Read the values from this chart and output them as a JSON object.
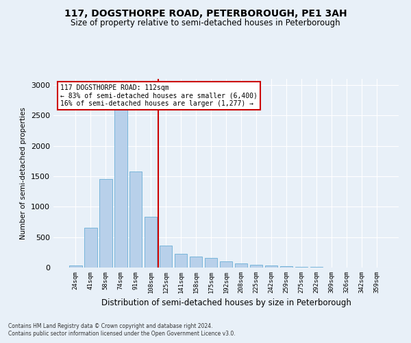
{
  "title": "117, DOGSTHORPE ROAD, PETERBOROUGH, PE1 3AH",
  "subtitle": "Size of property relative to semi-detached houses in Peterborough",
  "xlabel": "Distribution of semi-detached houses by size in Peterborough",
  "ylabel": "Number of semi-detached properties",
  "categories": [
    "24sqm",
    "41sqm",
    "58sqm",
    "74sqm",
    "91sqm",
    "108sqm",
    "125sqm",
    "141sqm",
    "158sqm",
    "175sqm",
    "192sqm",
    "208sqm",
    "225sqm",
    "242sqm",
    "259sqm",
    "275sqm",
    "292sqm",
    "309sqm",
    "326sqm",
    "342sqm",
    "359sqm"
  ],
  "values": [
    35,
    650,
    1450,
    2600,
    1580,
    830,
    360,
    230,
    185,
    155,
    100,
    70,
    45,
    30,
    18,
    12,
    8,
    5,
    3,
    2,
    1
  ],
  "bar_color": "#b8d0ea",
  "bar_edge_color": "#6aaed6",
  "ref_line_color": "#cc0000",
  "annotation_title": "117 DOGSTHORPE ROAD: 112sqm",
  "annotation_line1": "← 83% of semi-detached houses are smaller (6,400)",
  "annotation_line2": "16% of semi-detached houses are larger (1,277) →",
  "annotation_box_facecolor": "#ffffff",
  "annotation_box_edgecolor": "#cc0000",
  "ylim": [
    0,
    3100
  ],
  "yticks": [
    0,
    500,
    1000,
    1500,
    2000,
    2500,
    3000
  ],
  "footer1": "Contains HM Land Registry data © Crown copyright and database right 2024.",
  "footer2": "Contains public sector information licensed under the Open Government Licence v3.0.",
  "bg_color": "#e8f0f8",
  "grid_color": "#ffffff"
}
